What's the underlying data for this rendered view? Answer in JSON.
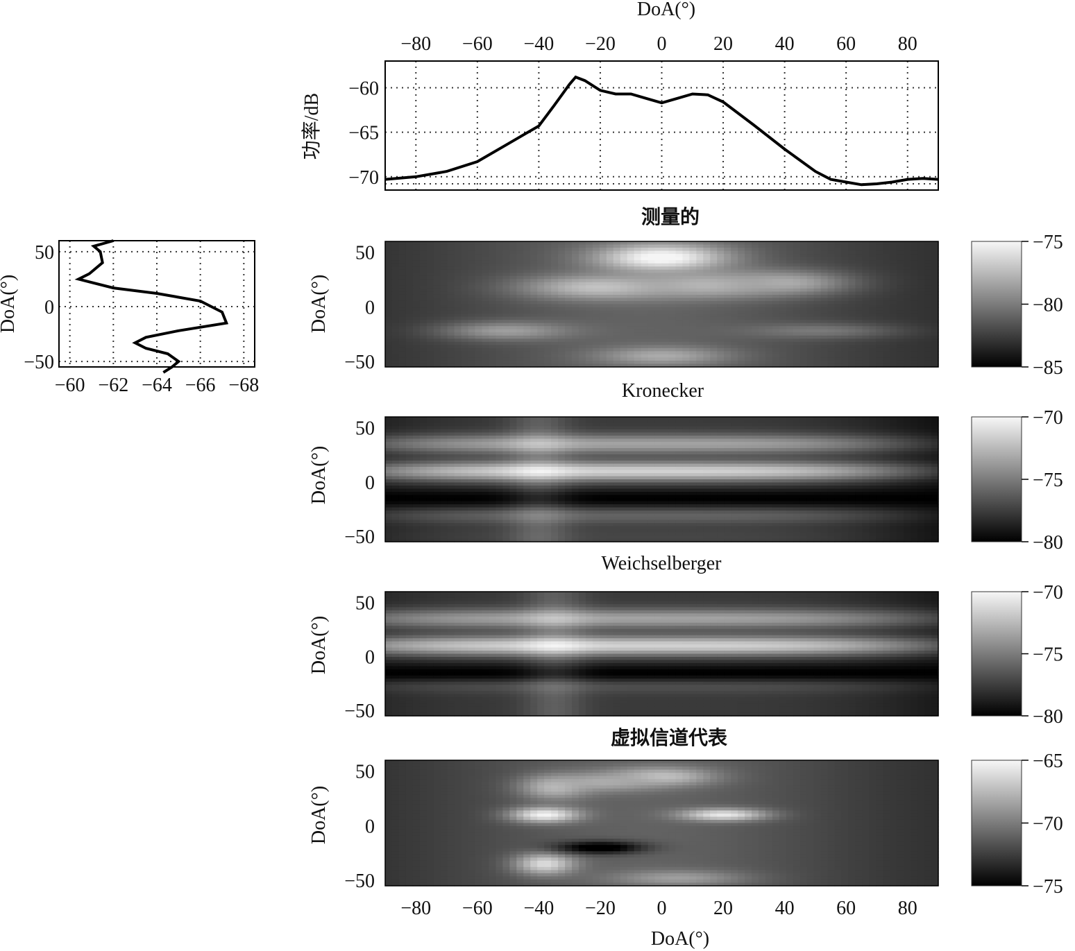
{
  "chart_data": [
    {
      "type": "line",
      "panel": "top-profile",
      "xlabel": "DoA(°)",
      "ylabel": "功率/dB",
      "xlim": [
        -90,
        90
      ],
      "ylim": [
        -71.5,
        -57
      ],
      "x_ticks": [
        "−80",
        "−60",
        "−40",
        "−20",
        "0",
        "20",
        "40",
        "60",
        "80"
      ],
      "y_ticks": [
        "−60",
        "−65",
        "−70"
      ],
      "grid": true,
      "x": [
        -90,
        -80,
        -70,
        -60,
        -50,
        -40,
        -35,
        -30,
        -28,
        -25,
        -20,
        -15,
        -10,
        -5,
        0,
        5,
        10,
        15,
        20,
        30,
        40,
        50,
        55,
        60,
        65,
        70,
        75,
        80,
        85,
        90
      ],
      "y": [
        -70.3,
        -70.0,
        -69.4,
        -68.3,
        -66.3,
        -64.3,
        -62.0,
        -59.6,
        -58.8,
        -59.2,
        -60.3,
        -60.7,
        -60.7,
        -61.2,
        -61.7,
        -61.2,
        -60.7,
        -60.8,
        -61.6,
        -64.2,
        -66.9,
        -69.4,
        -70.3,
        -70.6,
        -70.9,
        -70.8,
        -70.6,
        -70.3,
        -70.2,
        -70.3
      ]
    },
    {
      "type": "line",
      "panel": "left-profile",
      "xlabel": "",
      "ylabel": "DoA(°)",
      "xlim": [
        -59.5,
        -68.5
      ],
      "ylim": [
        -55,
        60
      ],
      "x_ticks": [
        "−60",
        "−62",
        "−64",
        "−66",
        "−68"
      ],
      "y_ticks": [
        "50",
        "0",
        "−50"
      ],
      "grid": true,
      "x": [
        -62.0,
        -61.1,
        -61.4,
        -61.5,
        -60.9,
        -60.4,
        -62.0,
        -64.0,
        -66.0,
        -67.0,
        -67.2,
        -65.0,
        -63.5,
        -63.0,
        -63.5,
        -64.5,
        -65.0,
        -64.7,
        -64.3
      ],
      "y": [
        60,
        55,
        50,
        40,
        30,
        25,
        17,
        12,
        5,
        -5,
        -15,
        -22,
        -28,
        -33,
        -38,
        -43,
        -50,
        -55,
        -60
      ]
    },
    {
      "type": "heatmap",
      "title": "测量的",
      "ylabel": "DoA(°)",
      "y_ticks": [
        "50",
        "0",
        "−50"
      ],
      "colorbar": {
        "min": -85,
        "max": -75,
        "ticks": [
          "−75",
          "−80",
          "−85"
        ]
      },
      "colormap": "gray",
      "blobs": [
        {
          "doa_x": 0,
          "doa_y": 45,
          "sx": 15,
          "sy": 9,
          "v": -74.5
        },
        {
          "doa_x": -20,
          "doa_y": 18,
          "sx": 18,
          "sy": 8,
          "v": -77
        },
        {
          "doa_x": 15,
          "doa_y": 20,
          "sx": 15,
          "sy": 8,
          "v": -77.5
        },
        {
          "doa_x": 40,
          "doa_y": 22,
          "sx": 15,
          "sy": 8,
          "v": -78
        },
        {
          "doa_x": -50,
          "doa_y": -22,
          "sx": 15,
          "sy": 6,
          "v": -78.5
        },
        {
          "doa_x": 0,
          "doa_y": -45,
          "sx": 15,
          "sy": 6,
          "v": -78
        },
        {
          "doa_x": 50,
          "doa_y": -22,
          "sx": 18,
          "sy": 5,
          "v": -80
        }
      ]
    },
    {
      "type": "heatmap",
      "title": "Kronecker",
      "ylabel": "DoA(°)",
      "y_ticks": [
        "50",
        "0",
        "−50"
      ],
      "colorbar": {
        "min": -80,
        "max": -70,
        "ticks": [
          "−70",
          "−75",
          "−80"
        ]
      },
      "colormap": "gray",
      "x_profile": {
        "center": -10,
        "width": 95,
        "peak_at": -40
      },
      "y_bands": [
        {
          "doa_y": 10,
          "v": -71
        },
        {
          "doa_y": 35,
          "v": -73
        },
        {
          "doa_y": -30,
          "v": -75.5
        },
        {
          "doa_y": -15,
          "v": -80
        },
        {
          "doa_y": -50,
          "v": -77
        }
      ]
    },
    {
      "type": "heatmap",
      "title": "Weichselberger",
      "ylabel": "DoA(°)",
      "y_ticks": [
        "50",
        "0",
        "−50"
      ],
      "colorbar": {
        "min": -80,
        "max": -70,
        "ticks": [
          "−70",
          "−75",
          "−80"
        ]
      },
      "colormap": "gray",
      "x_profile": {
        "center": -10,
        "width": 105,
        "peak_at": -35
      },
      "y_bands": [
        {
          "doa_y": 10,
          "v": -71
        },
        {
          "doa_y": 35,
          "v": -73
        },
        {
          "doa_y": -25,
          "v": -76
        },
        {
          "doa_y": -15,
          "v": -80
        },
        {
          "doa_y": -45,
          "v": -77.5
        }
      ]
    },
    {
      "type": "heatmap",
      "title": "虚拟信道代表",
      "ylabel": "DoA(°)",
      "y_ticks": [
        "50",
        "0",
        "−50"
      ],
      "colorbar": {
        "min": -75,
        "max": -65,
        "ticks": [
          "−65",
          "−70",
          "−75"
        ]
      },
      "colormap": "gray",
      "blobs": [
        {
          "doa_x": -38,
          "doa_y": 10,
          "sx": 8,
          "sy": 5,
          "v": -65
        },
        {
          "doa_x": 20,
          "doa_y": 10,
          "sx": 10,
          "sy": 4,
          "v": -65.5
        },
        {
          "doa_x": 0,
          "doa_y": 45,
          "sx": 12,
          "sy": 6,
          "v": -67
        },
        {
          "doa_x": -18,
          "doa_y": 40,
          "sx": 12,
          "sy": 6,
          "v": -68
        },
        {
          "doa_x": -38,
          "doa_y": -35,
          "sx": 7,
          "sy": 7,
          "v": -66
        },
        {
          "doa_x": -35,
          "doa_y": 35,
          "sx": 8,
          "sy": 8,
          "v": -67.5
        },
        {
          "doa_x": 5,
          "doa_y": -48,
          "sx": 15,
          "sy": 5,
          "v": -68.5
        },
        {
          "doa_x": -20,
          "doa_y": -20,
          "sx": 10,
          "sy": 4,
          "v": -76
        }
      ]
    }
  ],
  "shared_x_axis": {
    "label": "DoA(°)",
    "ticks": [
      "−80",
      "−60",
      "−40",
      "−20",
      "0",
      "20",
      "40",
      "60",
      "80"
    ]
  }
}
